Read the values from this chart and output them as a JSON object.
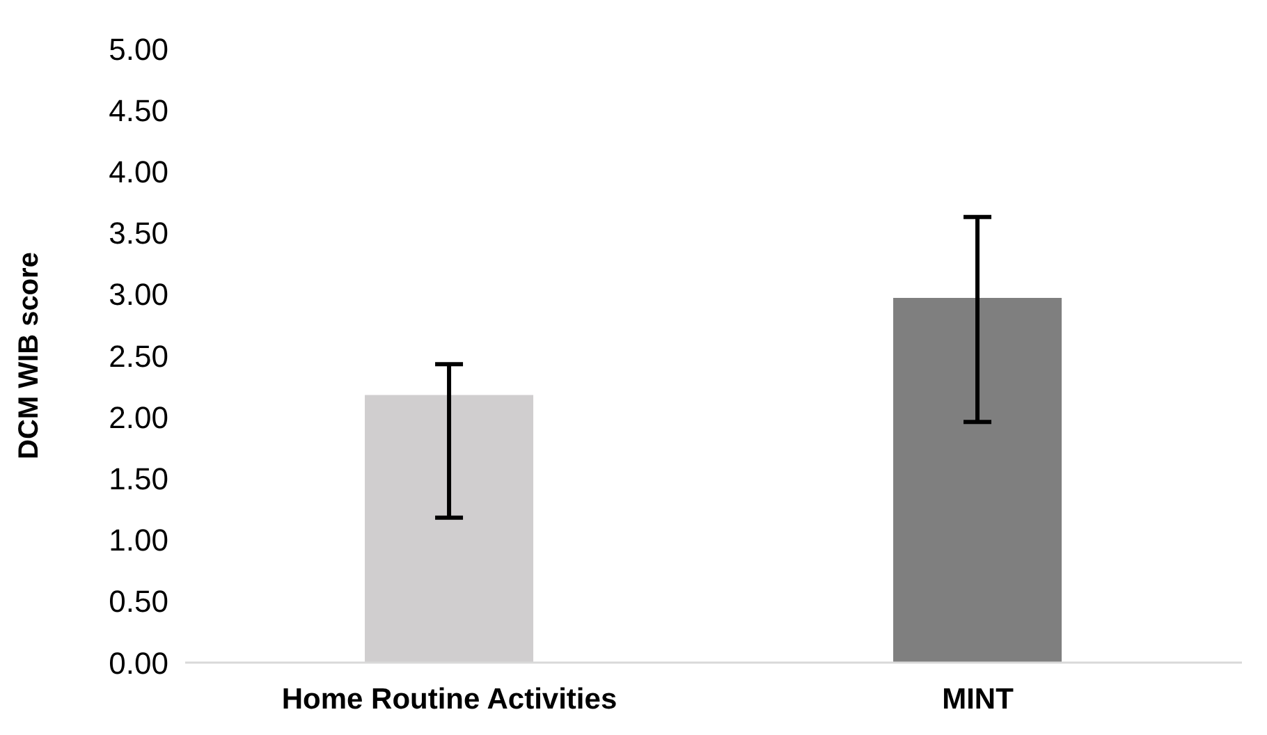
{
  "chart_data": {
    "type": "bar",
    "ylabel": "DCM WIB score",
    "categories": [
      "Home Routine Activities",
      "MINT"
    ],
    "values": [
      2.18,
      2.97
    ],
    "colors": [
      "#d0cecf",
      "#7f7f7f"
    ],
    "errors": [
      [
        1.18,
        2.43
      ],
      [
        1.96,
        3.63
      ]
    ],
    "ylim": [
      0,
      5
    ],
    "yticks": [
      {
        "value": 0,
        "label": "0.00"
      },
      {
        "value": 0.5,
        "label": "0.50"
      },
      {
        "value": 1,
        "label": "1.00"
      },
      {
        "value": 1.5,
        "label": "1.50"
      },
      {
        "value": 2,
        "label": "2.00"
      },
      {
        "value": 2.5,
        "label": "2.50"
      },
      {
        "value": 3,
        "label": "3.00"
      },
      {
        "value": 3.5,
        "label": "3.50"
      },
      {
        "value": 4,
        "label": "4.00"
      },
      {
        "value": 4.5,
        "label": "4.50"
      },
      {
        "value": 5,
        "label": "5.00"
      }
    ],
    "grid": false,
    "legend": false
  }
}
